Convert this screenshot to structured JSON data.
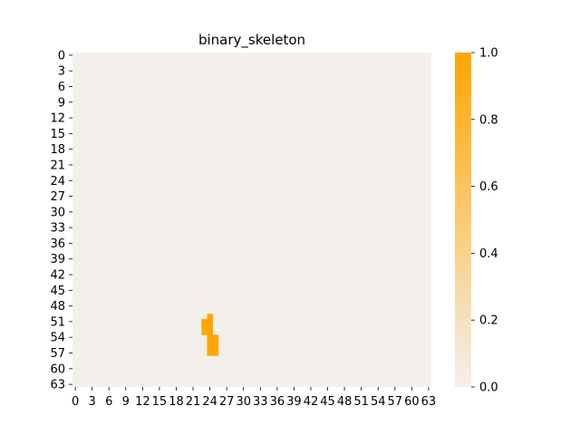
{
  "chart_data": {
    "type": "heatmap",
    "title": "binary_skeleton",
    "xlabel": "",
    "ylabel": "",
    "rows": 64,
    "cols": 64,
    "x_tick_labels": [
      "0",
      "3",
      "6",
      "9",
      "12",
      "15",
      "18",
      "21",
      "24",
      "27",
      "30",
      "33",
      "36",
      "39",
      "42",
      "45",
      "48",
      "51",
      "54",
      "57",
      "60",
      "63"
    ],
    "y_tick_labels": [
      "0",
      "3",
      "6",
      "9",
      "12",
      "15",
      "18",
      "21",
      "24",
      "27",
      "30",
      "33",
      "36",
      "39",
      "42",
      "45",
      "48",
      "51",
      "54",
      "57",
      "60",
      "63"
    ],
    "value_range": [
      0.0,
      1.0
    ],
    "default_value": 0.0,
    "nonzero_cells": [
      {
        "row": 50,
        "col": 24,
        "value": 1.0
      },
      {
        "row": 51,
        "col": 23,
        "value": 1.0
      },
      {
        "row": 51,
        "col": 24,
        "value": 1.0
      },
      {
        "row": 52,
        "col": 23,
        "value": 1.0
      },
      {
        "row": 52,
        "col": 24,
        "value": 1.0
      },
      {
        "row": 53,
        "col": 23,
        "value": 1.0
      },
      {
        "row": 53,
        "col": 24,
        "value": 1.0
      },
      {
        "row": 54,
        "col": 24,
        "value": 1.0
      },
      {
        "row": 54,
        "col": 25,
        "value": 1.0
      },
      {
        "row": 55,
        "col": 24,
        "value": 1.0
      },
      {
        "row": 55,
        "col": 25,
        "value": 1.0
      },
      {
        "row": 56,
        "col": 24,
        "value": 1.0
      },
      {
        "row": 56,
        "col": 25,
        "value": 1.0
      },
      {
        "row": 57,
        "col": 24,
        "value": 1.0
      },
      {
        "row": 57,
        "col": 25,
        "value": 1.0
      }
    ],
    "colorbar": {
      "ticks": [
        0.0,
        0.2,
        0.4,
        0.6,
        0.8,
        1.0
      ],
      "tick_labels": [
        "0.0",
        "0.2",
        "0.4",
        "0.6",
        "0.8",
        "1.0"
      ]
    },
    "colors": {
      "low": "#f3f0ec",
      "high": "#ffa500"
    },
    "grid": false,
    "legend": "colorbar-right"
  }
}
